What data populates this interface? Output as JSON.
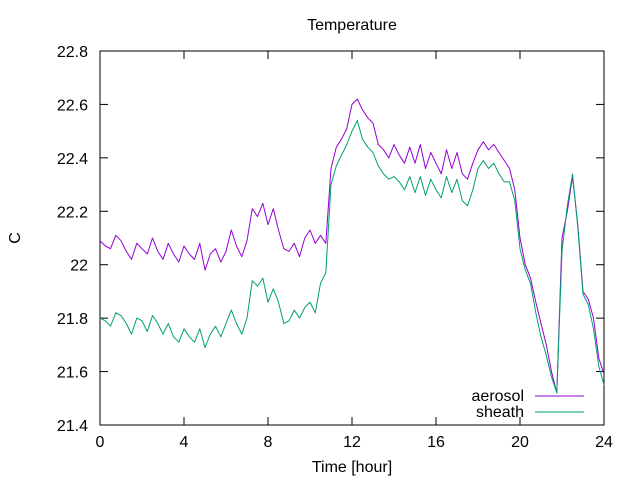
{
  "chart_data": {
    "type": "line",
    "title": "Temperature",
    "xlabel": "Time [hour]",
    "ylabel": "C",
    "xlim": [
      0,
      24
    ],
    "ylim": [
      21.4,
      22.8
    ],
    "xticks": [
      0,
      4,
      8,
      12,
      16,
      20,
      24
    ],
    "xtick_labels": [
      "0",
      "4",
      "8",
      "12",
      "16",
      "20",
      "24"
    ],
    "yticks": [
      21.4,
      21.6,
      21.8,
      22,
      22.2,
      22.4,
      22.6,
      22.8
    ],
    "ytick_labels": [
      "21.4",
      "21.6",
      "21.8",
      "22",
      "22.2",
      "22.4",
      "22.6",
      "22.8"
    ],
    "grid": false,
    "legend_position": "bottom-right",
    "series": [
      {
        "name": "aerosol",
        "color": "#9400d3",
        "x": [
          0,
          0.25,
          0.5,
          0.75,
          1.0,
          1.25,
          1.5,
          1.75,
          2.0,
          2.25,
          2.5,
          2.75,
          3.0,
          3.25,
          3.5,
          3.75,
          4.0,
          4.25,
          4.5,
          4.75,
          5.0,
          5.25,
          5.5,
          5.75,
          6.0,
          6.25,
          6.5,
          6.75,
          7.0,
          7.25,
          7.5,
          7.75,
          8.0,
          8.25,
          8.5,
          8.75,
          9.0,
          9.25,
          9.5,
          9.75,
          10.0,
          10.25,
          10.5,
          10.75,
          11.0,
          11.25,
          11.5,
          11.75,
          12.0,
          12.25,
          12.5,
          12.75,
          13.0,
          13.25,
          13.5,
          13.75,
          14.0,
          14.25,
          14.5,
          14.75,
          15.0,
          15.25,
          15.5,
          15.75,
          16.0,
          16.25,
          16.5,
          16.75,
          17.0,
          17.25,
          17.5,
          17.75,
          18.0,
          18.25,
          18.5,
          18.75,
          19.0,
          19.25,
          19.5,
          19.75,
          20.0,
          20.25,
          20.5,
          20.75,
          21.0,
          21.25,
          21.5,
          21.75,
          22.0,
          22.25,
          22.5,
          22.75,
          23.0,
          23.25,
          23.5,
          23.75,
          24.0
        ],
        "values": [
          22.09,
          22.07,
          22.06,
          22.11,
          22.09,
          22.05,
          22.02,
          22.08,
          22.06,
          22.04,
          22.1,
          22.05,
          22.02,
          22.08,
          22.04,
          22.01,
          22.07,
          22.04,
          22.02,
          22.08,
          21.98,
          22.04,
          22.06,
          22.01,
          22.05,
          22.13,
          22.07,
          22.03,
          22.09,
          22.21,
          22.18,
          22.23,
          22.15,
          22.21,
          22.13,
          22.06,
          22.05,
          22.08,
          22.03,
          22.1,
          22.13,
          22.08,
          22.11,
          22.08,
          22.36,
          22.44,
          22.47,
          22.51,
          22.6,
          22.62,
          22.58,
          22.55,
          22.53,
          22.45,
          22.43,
          22.4,
          22.45,
          22.41,
          22.38,
          22.44,
          22.38,
          22.45,
          22.36,
          22.42,
          22.38,
          22.34,
          22.43,
          22.36,
          22.42,
          22.34,
          22.32,
          22.38,
          22.43,
          22.46,
          22.43,
          22.45,
          22.42,
          22.39,
          22.36,
          22.28,
          22.1,
          22.0,
          21.95,
          21.86,
          21.78,
          21.7,
          21.6,
          21.52,
          22.1,
          22.2,
          22.33,
          22.15,
          21.9,
          21.87,
          21.8,
          21.65,
          21.59
        ]
      },
      {
        "name": "sheath",
        "color": "#009e73",
        "x": [
          0,
          0.25,
          0.5,
          0.75,
          1.0,
          1.25,
          1.5,
          1.75,
          2.0,
          2.25,
          2.5,
          2.75,
          3.0,
          3.25,
          3.5,
          3.75,
          4.0,
          4.25,
          4.5,
          4.75,
          5.0,
          5.25,
          5.5,
          5.75,
          6.0,
          6.25,
          6.5,
          6.75,
          7.0,
          7.25,
          7.5,
          7.75,
          8.0,
          8.25,
          8.5,
          8.75,
          9.0,
          9.25,
          9.5,
          9.75,
          10.0,
          10.25,
          10.5,
          10.75,
          11.0,
          11.25,
          11.5,
          11.75,
          12.0,
          12.25,
          12.5,
          12.75,
          13.0,
          13.25,
          13.5,
          13.75,
          14.0,
          14.25,
          14.5,
          14.75,
          15.0,
          15.25,
          15.5,
          15.75,
          16.0,
          16.25,
          16.5,
          16.75,
          17.0,
          17.25,
          17.5,
          17.75,
          18.0,
          18.25,
          18.5,
          18.75,
          19.0,
          19.25,
          19.5,
          19.75,
          20.0,
          20.25,
          20.5,
          20.75,
          21.0,
          21.25,
          21.5,
          21.75,
          22.0,
          22.25,
          22.5,
          22.75,
          23.0,
          23.25,
          23.5,
          23.75,
          24.0
        ],
        "values": [
          21.8,
          21.79,
          21.77,
          21.82,
          21.81,
          21.78,
          21.74,
          21.8,
          21.79,
          21.75,
          21.81,
          21.78,
          21.74,
          21.78,
          21.73,
          21.71,
          21.76,
          21.73,
          21.71,
          21.76,
          21.69,
          21.74,
          21.77,
          21.73,
          21.78,
          21.83,
          21.78,
          21.74,
          21.8,
          21.94,
          21.92,
          21.95,
          21.86,
          21.91,
          21.86,
          21.78,
          21.79,
          21.83,
          21.8,
          21.84,
          21.86,
          21.82,
          21.93,
          21.97,
          22.3,
          22.37,
          22.41,
          22.45,
          22.5,
          22.54,
          22.47,
          22.44,
          22.42,
          22.37,
          22.34,
          22.32,
          22.33,
          22.31,
          22.28,
          22.33,
          22.27,
          22.33,
          22.26,
          22.32,
          22.28,
          22.25,
          22.33,
          22.27,
          22.32,
          22.24,
          22.22,
          22.28,
          22.36,
          22.39,
          22.36,
          22.38,
          22.34,
          22.31,
          22.31,
          22.24,
          22.06,
          21.98,
          21.93,
          21.82,
          21.73,
          21.66,
          21.58,
          21.52,
          22.05,
          22.22,
          22.34,
          22.14,
          21.89,
          21.85,
          21.76,
          21.62,
          21.55
        ]
      }
    ]
  }
}
